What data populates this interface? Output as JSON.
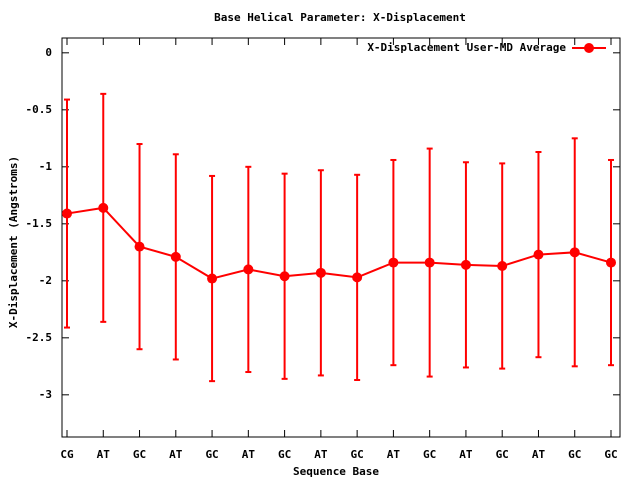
{
  "chart_data": {
    "type": "line",
    "title": "Base  Helical Parameter: X-Displacement",
    "x_label": "Sequence Base",
    "y_label": "X-Displacement (Angstroms)",
    "categories": [
      "CG",
      "AT",
      "GC",
      "AT",
      "GC",
      "AT",
      "GC",
      "AT",
      "GC",
      "AT",
      "GC",
      "AT",
      "GC",
      "AT",
      "GC",
      "GC"
    ],
    "series": [
      {
        "name": "X-Displacement User-MD Average",
        "color": "#ff0000",
        "values": [
          -1.41,
          -1.36,
          -1.7,
          -1.79,
          -1.98,
          -1.9,
          -1.96,
          -1.93,
          -1.97,
          -1.84,
          -1.84,
          -1.86,
          -1.87,
          -1.77,
          -1.75,
          -1.84
        ],
        "errors": [
          1.0,
          1.0,
          0.9,
          0.9,
          0.9,
          0.9,
          0.9,
          0.9,
          0.9,
          0.9,
          1.0,
          0.9,
          0.9,
          0.9,
          1.0,
          0.9
        ]
      }
    ],
    "ylim": [
      -3.37,
      0.13
    ],
    "yticks": [
      0,
      -0.5,
      -1,
      -1.5,
      -2,
      -2.5,
      -3
    ],
    "legend": "top-right"
  }
}
